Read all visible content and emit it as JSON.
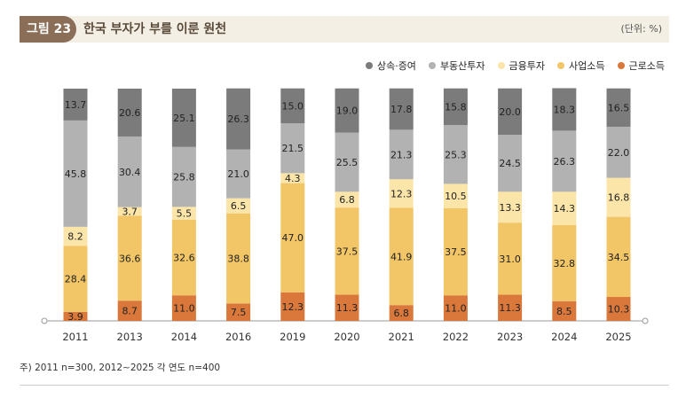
{
  "header": {
    "figure_label": "그림 23",
    "title": "한국 부자가 부를 이룬 원천",
    "unit": "(단위: %)"
  },
  "footnote": "주) 2011 n=300, 2012∼2025 각 연도 n=400",
  "chart_data": {
    "type": "bar",
    "stacked": true,
    "categories": [
      "2011",
      "2013",
      "2014",
      "2016",
      "2019",
      "2020",
      "2021",
      "2022",
      "2023",
      "2024",
      "2025"
    ],
    "series": [
      {
        "name": "근로소득",
        "color": "#d9783a",
        "values": [
          3.9,
          8.7,
          11.0,
          7.5,
          12.3,
          11.3,
          6.8,
          11.0,
          11.3,
          8.5,
          10.3
        ]
      },
      {
        "name": "사업소득",
        "color": "#f2c566",
        "values": [
          28.4,
          36.6,
          32.6,
          38.8,
          47.0,
          37.5,
          41.9,
          37.5,
          31.0,
          32.8,
          34.5
        ]
      },
      {
        "name": "금융투자",
        "color": "#fbe5a9",
        "values": [
          8.2,
          3.7,
          5.5,
          6.5,
          4.3,
          6.8,
          12.3,
          10.5,
          13.3,
          14.3,
          16.8
        ]
      },
      {
        "name": "부동산투자",
        "color": "#b2b2b2",
        "values": [
          45.8,
          30.4,
          25.8,
          21.0,
          21.5,
          25.5,
          21.3,
          25.3,
          24.5,
          26.3,
          22.0
        ]
      },
      {
        "name": "상속·증여",
        "color": "#7b7b7b",
        "values": [
          13.7,
          20.6,
          25.1,
          26.3,
          15.0,
          19.0,
          17.8,
          15.8,
          20.0,
          18.3,
          16.5
        ]
      }
    ],
    "legend_order": [
      "상속·증여",
      "부동산투자",
      "금융투자",
      "사업소득",
      "근로소득"
    ],
    "ylim": [
      0,
      100
    ],
    "title": "한국 부자가 부를 이룬 원천",
    "xlabel": "",
    "ylabel": ""
  }
}
